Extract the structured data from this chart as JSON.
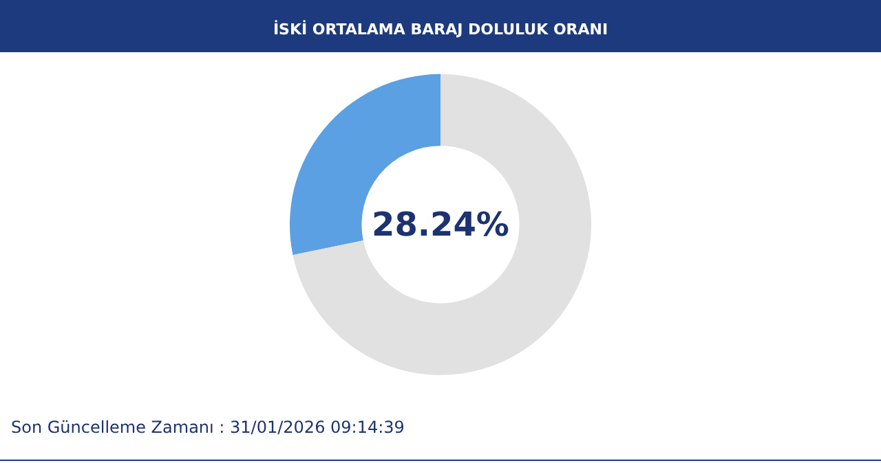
{
  "chart_data": {
    "type": "donut",
    "title": "İSKİ ORTALAMA BARAJ DOLULUK ORANI",
    "categories": [
      null,
      null
    ],
    "values": [
      28.24,
      71.76
    ],
    "colors": [
      "#5aa0e3",
      "#e1e1e1"
    ],
    "value_labels": [
      "28.24%",
      null
    ],
    "annotations": [
      "Son Güncelleme Zamanı : 31/01/2026 09:14:39"
    ]
  }
}
